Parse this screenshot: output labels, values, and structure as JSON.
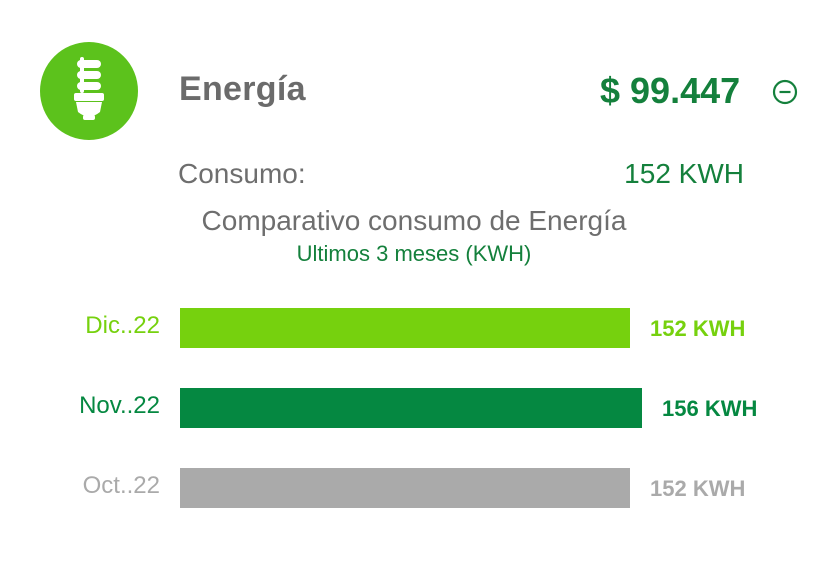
{
  "card": {
    "title": "Energía",
    "amount": "$ 99.447",
    "consumo_label": "Consumo:",
    "consumo_value": "152 KWH",
    "icon": "lightbulb-icon",
    "collapse_icon": "minus-circle-icon"
  },
  "colors": {
    "brand_green": "#5cc21c",
    "dark_green": "#14803c",
    "text_gray": "#6e6e6e"
  },
  "chart_data": {
    "type": "bar",
    "title": "Comparativo consumo de Energía",
    "subtitle": "Ultimos 3 meses (KWH)",
    "orientation": "horizontal",
    "categories": [
      "Dic..22",
      "Nov..22",
      "Oct..22"
    ],
    "values": [
      152,
      156,
      152
    ],
    "labels": [
      "152 KWH",
      "156 KWH",
      "152 KWH"
    ],
    "colors": [
      "#76d10e",
      "#058841",
      "#aaaaaa"
    ],
    "label_colors": [
      "#76d10e",
      "#058841",
      "#aaaaaa"
    ],
    "xlim": [
      0,
      156
    ]
  }
}
